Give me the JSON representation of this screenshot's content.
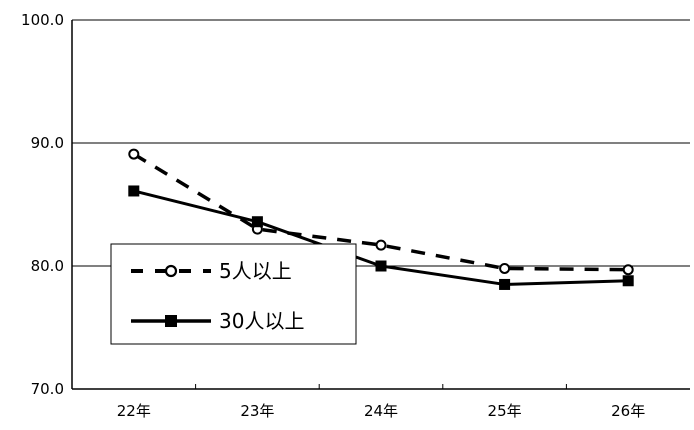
{
  "chart_data": {
    "type": "line",
    "title": "",
    "xlabel": "",
    "ylabel": "",
    "categories": [
      "22年",
      "23年",
      "24年",
      "25年",
      "26年"
    ],
    "ylim": [
      70.0,
      100.0
    ],
    "yticks": [
      "70.0",
      "80.0",
      "90.0",
      "100.0"
    ],
    "grid": true,
    "legend": {
      "position": "center-left",
      "entries": [
        "5人以上",
        "30人以上"
      ]
    },
    "series": [
      {
        "name": "5人以上",
        "values": [
          89.1,
          83.0,
          81.7,
          79.8,
          79.7
        ],
        "line": "dashed",
        "marker": "open-circle",
        "color": "#000000"
      },
      {
        "name": "30人以上",
        "values": [
          86.1,
          83.6,
          80.0,
          78.5,
          78.8
        ],
        "line": "solid",
        "marker": "filled-square",
        "color": "#000000"
      }
    ]
  }
}
